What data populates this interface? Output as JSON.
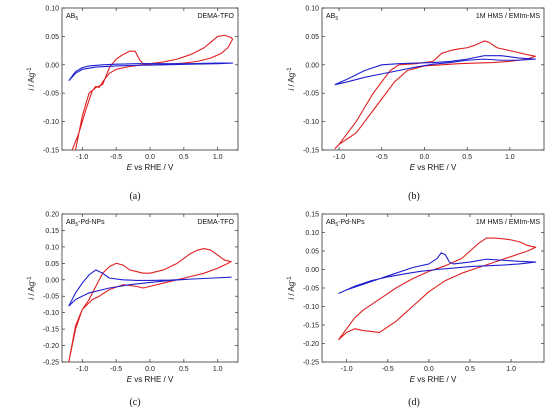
{
  "colors": {
    "series_a": "#e02020",
    "series_b": "#2020d0",
    "axis": "#333333"
  },
  "chart_data": [
    {
      "type": "line",
      "caption": "(a)",
      "label_left": "AB",
      "label_left_sub": "5",
      "label_left_rest": "",
      "label_right": "DEMA-TFO",
      "xlabel_italic": "E",
      "xlabel_rest": " vs RHE / V",
      "ylabel_italic": "i",
      "ylabel_rest": " / Ag",
      "ylabel_sup": "-1",
      "xlim": [
        -1.3,
        1.3
      ],
      "ylim": [
        -0.15,
        0.1
      ],
      "xticks": [
        -1.0,
        -0.5,
        0.0,
        0.5,
        1.0
      ],
      "xtick_labels": [
        "-1.0",
        "-0.5",
        "0.0",
        "0.5",
        "1.0"
      ],
      "yticks": [
        -0.15,
        -0.1,
        -0.05,
        0.0,
        0.05,
        0.1
      ],
      "ytick_labels": [
        "-0.15",
        "-0.10",
        "-0.05",
        "0.00",
        "0.05",
        "0.10"
      ],
      "series": [
        {
          "color": "#e02020",
          "x": [
            -1.1,
            -1.0,
            -0.9,
            -0.8,
            -0.7,
            -0.6,
            -0.5,
            -0.4,
            -0.3,
            -0.22,
            -0.15,
            -0.1,
            0.0,
            0.2,
            0.4,
            0.6,
            0.8,
            0.9,
            1.0,
            1.1,
            1.2,
            1.22,
            1.15,
            1.05,
            0.9,
            0.7,
            0.5,
            0.3,
            0.1,
            -0.1,
            -0.3,
            -0.5,
            -0.6,
            -0.7,
            -0.75,
            -0.8,
            -0.85,
            -0.95,
            -1.05,
            -1.15
          ],
          "y": [
            -0.15,
            -0.09,
            -0.05,
            -0.04,
            -0.035,
            -0.005,
            0.01,
            0.018,
            0.024,
            0.024,
            0.008,
            0.002,
            0.002,
            0.005,
            0.01,
            0.018,
            0.03,
            0.04,
            0.05,
            0.052,
            0.048,
            0.045,
            0.03,
            0.02,
            0.012,
            0.006,
            0.003,
            0.001,
            0.0,
            0.0,
            -0.003,
            -0.008,
            -0.015,
            -0.03,
            -0.04,
            -0.038,
            -0.045,
            -0.08,
            -0.12,
            -0.15
          ]
        },
        {
          "color": "#2020d0",
          "x": [
            -1.2,
            -1.1,
            -1.0,
            -0.9,
            -0.7,
            -0.5,
            -0.2,
            0.2,
            0.6,
            1.0,
            1.22,
            1.0,
            0.6,
            0.2,
            -0.2,
            -0.5,
            -0.8,
            -1.0,
            -1.1,
            -1.2
          ],
          "y": [
            -0.028,
            -0.012,
            -0.005,
            -0.002,
            0.0,
            0.001,
            0.002,
            0.002,
            0.002,
            0.003,
            0.003,
            0.002,
            0.001,
            0.0,
            -0.001,
            -0.002,
            -0.004,
            -0.008,
            -0.015,
            -0.028
          ]
        }
      ]
    },
    {
      "type": "line",
      "caption": "(b)",
      "label_left": "AB",
      "label_left_sub": "5",
      "label_left_rest": "",
      "label_right": "1M HMS / EMIm-MS",
      "xlabel_italic": "E",
      "xlabel_rest": " vs RHE / V",
      "ylabel_italic": "i",
      "ylabel_rest": " / Ag",
      "ylabel_sup": "-1",
      "xlim": [
        -1.2,
        1.4
      ],
      "ylim": [
        -0.15,
        0.1
      ],
      "xticks": [
        -1.0,
        -0.5,
        0.0,
        0.5,
        1.0
      ],
      "xtick_labels": [
        "-1.0",
        "-0.5",
        "0.0",
        "0.5",
        "1.0"
      ],
      "yticks": [
        -0.15,
        -0.1,
        -0.05,
        0.0,
        0.05,
        0.1
      ],
      "ytick_labels": [
        "-0.15",
        "-0.10",
        "-0.05",
        "0.00",
        "0.05",
        "0.10"
      ],
      "series": [
        {
          "color": "#e02020",
          "x": [
            -1.05,
            -1.0,
            -0.9,
            -0.8,
            -0.7,
            -0.6,
            -0.5,
            -0.4,
            -0.3,
            -0.1,
            0.1,
            0.2,
            0.3,
            0.4,
            0.5,
            0.6,
            0.7,
            0.75,
            0.85,
            1.0,
            1.2,
            1.3,
            1.2,
            1.0,
            0.8,
            0.6,
            0.4,
            0.2,
            0.0,
            -0.2,
            -0.35,
            -0.5,
            -0.6,
            -0.7,
            -0.8,
            -0.9,
            -1.0,
            -1.05
          ],
          "y": [
            -0.148,
            -0.14,
            -0.12,
            -0.1,
            -0.075,
            -0.05,
            -0.03,
            -0.01,
            0.0,
            0.002,
            0.006,
            0.02,
            0.025,
            0.028,
            0.03,
            0.035,
            0.042,
            0.04,
            0.03,
            0.025,
            0.018,
            0.015,
            0.01,
            0.006,
            0.004,
            0.003,
            0.002,
            0.0,
            -0.002,
            -0.01,
            -0.03,
            -0.06,
            -0.08,
            -0.1,
            -0.12,
            -0.13,
            -0.14,
            -0.148
          ]
        },
        {
          "color": "#2020d0",
          "x": [
            -1.05,
            -0.9,
            -0.7,
            -0.5,
            -0.3,
            -0.1,
            0.1,
            0.3,
            0.5,
            0.7,
            0.9,
            1.1,
            1.3,
            1.1,
            0.9,
            0.7,
            0.5,
            0.3,
            0.1,
            -0.1,
            -0.3,
            -0.5,
            -0.7,
            -0.9,
            -1.05
          ],
          "y": [
            -0.035,
            -0.025,
            -0.01,
            0.0,
            0.002,
            0.003,
            0.004,
            0.006,
            0.01,
            0.016,
            0.016,
            0.012,
            0.01,
            0.008,
            0.008,
            0.01,
            0.008,
            0.004,
            0.001,
            -0.004,
            -0.01,
            -0.016,
            -0.022,
            -0.03,
            -0.035
          ]
        }
      ]
    },
    {
      "type": "line",
      "caption": "(c)",
      "label_left": "AB",
      "label_left_sub": "5",
      "label_left_rest": "-Pd-NPs",
      "label_right": "DEMA-TFO",
      "xlabel_italic": "E",
      "xlabel_rest": " vs RHE / V",
      "ylabel_italic": "i",
      "ylabel_rest": " / Ag",
      "ylabel_sup": "-1",
      "xlim": [
        -1.3,
        1.3
      ],
      "ylim": [
        -0.25,
        0.2
      ],
      "xticks": [
        -1.0,
        -0.5,
        0.0,
        0.5,
        1.0
      ],
      "xtick_labels": [
        "-1.0",
        "-0.5",
        "0.0",
        "0.5",
        "1.0"
      ],
      "yticks": [
        -0.25,
        -0.2,
        -0.15,
        -0.1,
        -0.05,
        0.0,
        0.05,
        0.1,
        0.15,
        0.2
      ],
      "ytick_labels": [
        "-0.25",
        "-0.20",
        "-0.15",
        "-0.10",
        "-0.05",
        "0.00",
        "0.05",
        "0.10",
        "0.15",
        "0.20"
      ],
      "series": [
        {
          "color": "#e02020",
          "x": [
            -1.2,
            -1.1,
            -1.0,
            -0.9,
            -0.8,
            -0.7,
            -0.6,
            -0.5,
            -0.4,
            -0.3,
            -0.2,
            -0.1,
            0.0,
            0.2,
            0.4,
            0.6,
            0.7,
            0.8,
            0.9,
            1.0,
            1.1,
            1.2,
            1.1,
            1.0,
            0.8,
            0.6,
            0.4,
            0.2,
            0.0,
            -0.1,
            -0.2,
            -0.4,
            -0.6,
            -0.75,
            -0.85,
            -1.0,
            -1.1,
            -1.2
          ],
          "y": [
            -0.25,
            -0.15,
            -0.09,
            -0.06,
            -0.02,
            0.02,
            0.04,
            0.05,
            0.045,
            0.03,
            0.025,
            0.02,
            0.02,
            0.03,
            0.05,
            0.08,
            0.09,
            0.095,
            0.09,
            0.075,
            0.06,
            0.055,
            0.045,
            0.035,
            0.02,
            0.01,
            0.0,
            -0.01,
            -0.02,
            -0.025,
            -0.02,
            -0.015,
            -0.03,
            -0.05,
            -0.06,
            -0.09,
            -0.14,
            -0.25
          ]
        },
        {
          "color": "#2020d0",
          "x": [
            -1.2,
            -1.1,
            -1.0,
            -0.9,
            -0.8,
            -0.7,
            -0.6,
            -0.4,
            -0.2,
            0.0,
            0.3,
            0.6,
            0.9,
            1.2,
            0.9,
            0.6,
            0.3,
            0.0,
            -0.3,
            -0.6,
            -0.9,
            -1.1,
            -1.2
          ],
          "y": [
            -0.08,
            -0.04,
            -0.01,
            0.015,
            0.03,
            0.02,
            0.005,
            0.0,
            -0.002,
            -0.002,
            -0.001,
            0.002,
            0.005,
            0.008,
            0.005,
            0.002,
            -0.002,
            -0.008,
            -0.015,
            -0.025,
            -0.04,
            -0.06,
            -0.08
          ]
        }
      ]
    },
    {
      "type": "line",
      "caption": "(d)",
      "label_left": "AB",
      "label_left_sub": "5",
      "label_left_rest": "-Pd-NPs",
      "label_right": "1M HMS / EMIm-MS",
      "xlabel_italic": "E",
      "xlabel_rest": " vs RHE / V",
      "ylabel_italic": "i",
      "ylabel_rest": " / Ag",
      "ylabel_sup": "-1",
      "xlim": [
        -1.3,
        1.4
      ],
      "ylim": [
        -0.25,
        0.15
      ],
      "xticks": [
        -1.0,
        -0.5,
        0.0,
        0.5,
        1.0
      ],
      "xtick_labels": [
        "-1.0",
        "-0.5",
        "0.0",
        "0.5",
        "1.0"
      ],
      "yticks": [
        -0.25,
        -0.2,
        -0.15,
        -0.1,
        -0.05,
        0.0,
        0.05,
        0.1,
        0.15
      ],
      "ytick_labels": [
        "-0.25",
        "-0.20",
        "-0.15",
        "-0.10",
        "-0.05",
        "0.00",
        "0.05",
        "0.10",
        "0.15"
      ],
      "series": [
        {
          "color": "#e02020",
          "x": [
            -1.1,
            -1.0,
            -0.9,
            -0.8,
            -0.6,
            -0.4,
            -0.2,
            0.0,
            0.2,
            0.4,
            0.6,
            0.7,
            0.8,
            0.9,
            1.0,
            1.1,
            1.2,
            1.3,
            1.2,
            1.0,
            0.8,
            0.6,
            0.4,
            0.2,
            0.0,
            -0.2,
            -0.4,
            -0.6,
            -0.8,
            -0.9,
            -1.0,
            -1.1
          ],
          "y": [
            -0.19,
            -0.16,
            -0.13,
            -0.11,
            -0.08,
            -0.05,
            -0.025,
            -0.005,
            0.01,
            0.03,
            0.07,
            0.085,
            0.085,
            0.083,
            0.08,
            0.075,
            0.065,
            0.06,
            0.05,
            0.035,
            0.02,
            0.005,
            -0.01,
            -0.03,
            -0.06,
            -0.1,
            -0.14,
            -0.17,
            -0.165,
            -0.16,
            -0.17,
            -0.19
          ]
        },
        {
          "color": "#2020d0",
          "x": [
            -1.1,
            -1.0,
            -0.8,
            -0.6,
            -0.4,
            -0.2,
            0.0,
            0.1,
            0.15,
            0.2,
            0.25,
            0.3,
            0.5,
            0.7,
            0.9,
            1.1,
            1.3,
            1.1,
            0.9,
            0.7,
            0.5,
            0.3,
            0.1,
            -0.1,
            -0.3,
            -0.5,
            -0.7,
            -0.9,
            -1.1
          ],
          "y": [
            -0.065,
            -0.055,
            -0.04,
            -0.025,
            -0.01,
            0.005,
            0.015,
            0.03,
            0.045,
            0.04,
            0.02,
            0.015,
            0.02,
            0.028,
            0.025,
            0.022,
            0.02,
            0.015,
            0.012,
            0.01,
            0.008,
            0.004,
            0.0,
            -0.005,
            -0.012,
            -0.02,
            -0.03,
            -0.045,
            -0.065
          ]
        }
      ]
    }
  ]
}
